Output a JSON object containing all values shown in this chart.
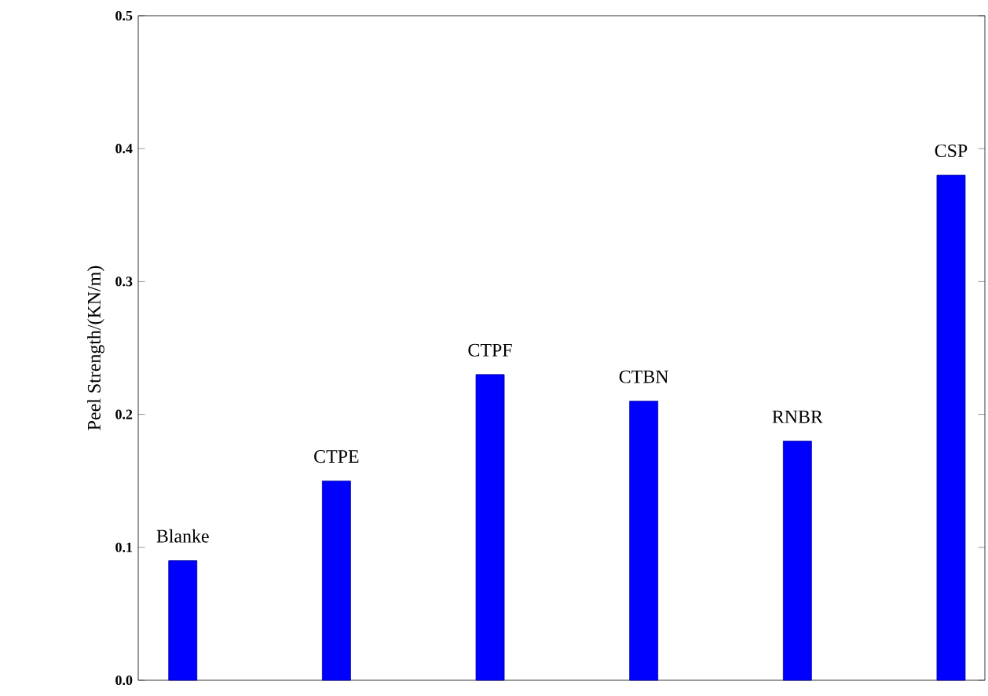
{
  "chart_data": {
    "type": "bar",
    "ylabel": "Peel Strength/(KN/m)",
    "categories": [
      "Blanke",
      "CTPE",
      "CTPF",
      "CTBN",
      "RNBR",
      "CSP"
    ],
    "values": [
      0.09,
      0.15,
      0.23,
      0.21,
      0.18,
      0.38
    ],
    "color": "#0000ff",
    "ylim": [
      0,
      0.5
    ],
    "yticks": [
      {
        "value": 0,
        "label": "0.0"
      },
      0.1,
      0.2,
      0.3,
      0.4,
      0.5
    ],
    "grid": false
  }
}
